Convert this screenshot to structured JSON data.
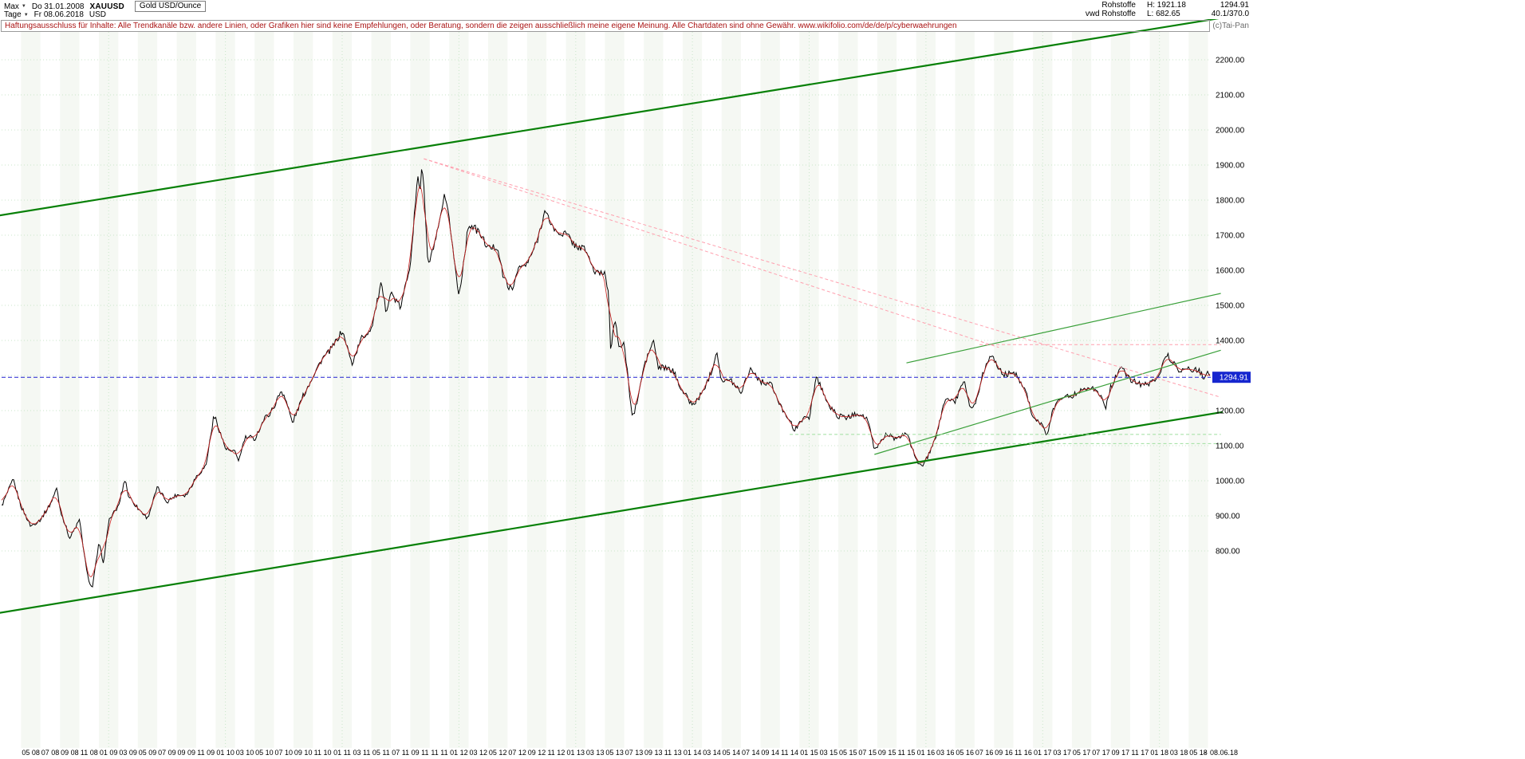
{
  "header": {
    "range_selector": "Max",
    "period_selector": "Tage",
    "start_date": "Do 31.01.2008",
    "end_date": "Fr 08.06.2018",
    "symbol": "XAUUSD",
    "currency": "USD",
    "instrument_title": "Gold USD/Ounce",
    "info": {
      "category": "Rohstoffe",
      "source": "vwd Rohstoffe",
      "high": "H: 1921.18",
      "low": "L: 682.65",
      "last": "1294.91",
      "indicator": "40.1/370.0",
      "copyright": "(c)Tai-Pan"
    }
  },
  "disclaimer": {
    "text": "Haftungsausschluss für Inhalte: Alle Trendkanäle bzw. andere Linien, oder Grafiken hier sind keine Empfehlungen, oder Beratung, sondern die zeigen ausschließlich meine eigene Meinung. Alle Chartdaten sind ohne Gewähr.",
    "url": "www.wikifolio.com/de/de/p/cyberwaehrungen"
  },
  "chart_data": {
    "type": "line",
    "title": "Gold USD/Ounce (XAUUSD), daily, 31.01.2008 - 08.06.2018",
    "last_price": 1294.91,
    "period_high": 1921.18,
    "period_low": 682.65,
    "grid": true,
    "colors": {
      "price": "#000000",
      "overlay_line": "#cc2020",
      "channel_green": "#078007",
      "thin_green": "#3aa03a",
      "pink_dashed": "#ff9fae",
      "light_green_dashed": "#9fdf9f",
      "last_price_line": "#2020d0",
      "grid": "#c9e6c9",
      "price_tag_bg": "#1626cf"
    },
    "y_axis": {
      "tick_step": 100,
      "labels": [
        "2200.00",
        "2100.00",
        "2000.00",
        "1900.00",
        "1800.00",
        "1700.00",
        "1600.00",
        "1500.00",
        "1400.00",
        "1200.00",
        "1100.00",
        "1000.00",
        "900.00",
        "800.00"
      ]
    },
    "x_tick_labels": [
      "05 08",
      "07 08",
      "09 08",
      "11 08",
      "01 09",
      "03 09",
      "05 09",
      "07 09",
      "09 09",
      "11 09",
      "01 10",
      "03 10",
      "05 10",
      "07 10",
      "09 10",
      "11 10",
      "01 11",
      "03 11",
      "05 11",
      "07 11",
      "09 11",
      "11 11",
      "01 12",
      "03 12",
      "05 12",
      "07 12",
      "09 12",
      "11 12",
      "01 13",
      "03 13",
      "05 13",
      "07 13",
      "09 13",
      "11 13",
      "01 14",
      "03 14",
      "05 14",
      "07 14",
      "09 14",
      "11 14",
      "01 15",
      "03 15",
      "05 15",
      "07 15",
      "09 15",
      "11 15",
      "01 16",
      "03 16",
      "05 16",
      "07 16",
      "09 16",
      "11 16",
      "01 17",
      "03 17",
      "05 17",
      "07 17",
      "09 17",
      "11 17",
      "01 18",
      "03 18",
      "05 18"
    ],
    "x_axis_separator": "-",
    "x_axis_end_label": "08.06.18",
    "series": {
      "name": "XAUUSD close",
      "points_format": "[t, price] where t = months since Jan 2008 (1 = end of Jan 2008), price in USD/oz",
      "points": [
        [
          1,
          923
        ],
        [
          2.2,
          1005
        ],
        [
          3,
          933
        ],
        [
          4,
          871
        ],
        [
          5,
          885
        ],
        [
          6,
          930
        ],
        [
          6.7,
          978
        ],
        [
          7,
          918
        ],
        [
          8,
          833
        ],
        [
          9,
          884
        ],
        [
          9.8,
          730
        ],
        [
          10.3,
          690
        ],
        [
          11,
          820
        ],
        [
          11.5,
          762
        ],
        [
          12,
          882
        ],
        [
          13,
          919
        ],
        [
          13.7,
          1000
        ],
        [
          14,
          952
        ],
        [
          15,
          916
        ],
        [
          16,
          888
        ],
        [
          17,
          975
        ],
        [
          18,
          934
        ],
        [
          19,
          953
        ],
        [
          20,
          955
        ],
        [
          21,
          1008
        ],
        [
          22,
          1040
        ],
        [
          22.8,
          1180
        ],
        [
          23,
          1175
        ],
        [
          24,
          1096
        ],
        [
          25,
          1083
        ],
        [
          25.4,
          1058
        ],
        [
          26,
          1118
        ],
        [
          27,
          1113
        ],
        [
          28,
          1180
        ],
        [
          29,
          1215
        ],
        [
          29.7,
          1255
        ],
        [
          30,
          1244
        ],
        [
          30.9,
          1160
        ],
        [
          31,
          1169
        ],
        [
          32,
          1246
        ],
        [
          33,
          1307
        ],
        [
          34,
          1359
        ],
        [
          35,
          1385
        ],
        [
          36,
          1421
        ],
        [
          37,
          1327
        ],
        [
          38,
          1411
        ],
        [
          39,
          1439
        ],
        [
          40,
          1556
        ],
        [
          40.5,
          1480
        ],
        [
          41,
          1536
        ],
        [
          42,
          1500
        ],
        [
          43,
          1628
        ],
        [
          43.8,
          1880
        ],
        [
          44,
          1826
        ],
        [
          44.2,
          1915
        ],
        [
          44.5,
          1790
        ],
        [
          44.8,
          1620
        ],
        [
          45,
          1622
        ],
        [
          46,
          1722
        ],
        [
          46.5,
          1800
        ],
        [
          47,
          1746
        ],
        [
          47.8,
          1570
        ],
        [
          48,
          1531
        ],
        [
          49,
          1737
        ],
        [
          50,
          1711
        ],
        [
          51,
          1662
        ],
        [
          52,
          1664
        ],
        [
          52.5,
          1585
        ],
        [
          53,
          1558
        ],
        [
          53.5,
          1540
        ],
        [
          54,
          1604
        ],
        [
          55,
          1622
        ],
        [
          56,
          1692
        ],
        [
          56.8,
          1780
        ],
        [
          57,
          1771
        ],
        [
          58,
          1720
        ],
        [
          59,
          1714
        ],
        [
          60,
          1675
        ],
        [
          61,
          1661
        ],
        [
          62,
          1588
        ],
        [
          63,
          1598
        ],
        [
          63.4,
          1540
        ],
        [
          63.6,
          1380
        ],
        [
          64,
          1469
        ],
        [
          64.5,
          1390
        ],
        [
          65,
          1394
        ],
        [
          65.8,
          1190
        ],
        [
          66,
          1192
        ],
        [
          66.5,
          1250
        ],
        [
          67,
          1323
        ],
        [
          68,
          1395
        ],
        [
          68.5,
          1320
        ],
        [
          69,
          1327
        ],
        [
          70,
          1323
        ],
        [
          71,
          1253
        ],
        [
          72,
          1205
        ],
        [
          73,
          1251
        ],
        [
          74,
          1326
        ],
        [
          74.5,
          1380
        ],
        [
          75,
          1291
        ],
        [
          76,
          1288
        ],
        [
          77,
          1250
        ],
        [
          78,
          1315
        ],
        [
          79,
          1285
        ],
        [
          80,
          1287
        ],
        [
          81,
          1216
        ],
        [
          82,
          1173
        ],
        [
          82.5,
          1140
        ],
        [
          83,
          1175
        ],
        [
          84,
          1184
        ],
        [
          84.7,
          1295
        ],
        [
          85,
          1283
        ],
        [
          86,
          1213
        ],
        [
          87,
          1184
        ],
        [
          88,
          1180
        ],
        [
          89,
          1190
        ],
        [
          90,
          1171
        ],
        [
          90.7,
          1085
        ],
        [
          91,
          1095
        ],
        [
          92,
          1134
        ],
        [
          93,
          1115
        ],
        [
          94,
          1142
        ],
        [
          95,
          1061
        ],
        [
          95.8,
          1048
        ],
        [
          96,
          1061
        ],
        [
          97,
          1118
        ],
        [
          98,
          1238
        ],
        [
          99,
          1232
        ],
        [
          99.8,
          1290
        ],
        [
          100,
          1292
        ],
        [
          100.5,
          1212
        ],
        [
          101,
          1215
        ],
        [
          102,
          1322
        ],
        [
          102.7,
          1370
        ],
        [
          103,
          1351
        ],
        [
          104,
          1309
        ],
        [
          105,
          1316
        ],
        [
          106,
          1272
        ],
        [
          106.3,
          1250
        ],
        [
          107,
          1173
        ],
        [
          108,
          1152
        ],
        [
          108.5,
          1125
        ],
        [
          109,
          1210
        ],
        [
          110,
          1248
        ],
        [
          111,
          1249
        ],
        [
          112,
          1268
        ],
        [
          113,
          1269
        ],
        [
          114,
          1242
        ],
        [
          114.5,
          1212
        ],
        [
          115,
          1269
        ],
        [
          116,
          1321
        ],
        [
          117,
          1280
        ],
        [
          118,
          1271
        ],
        [
          119,
          1275
        ],
        [
          120,
          1303
        ],
        [
          120.8,
          1360
        ],
        [
          121,
          1345
        ],
        [
          122,
          1318
        ],
        [
          123,
          1325
        ],
        [
          124,
          1315
        ],
        [
          124.6,
          1289
        ],
        [
          125,
          1300
        ],
        [
          125.27,
          1294.91
        ]
      ]
    },
    "trendlines": [
      {
        "name": "channel-lower",
        "t1": 0.5,
        "p1": 622,
        "t2": 126.5,
        "p2": 1196,
        "color": "#078007",
        "width": 2.2,
        "dash": null
      },
      {
        "name": "channel-upper",
        "t1": 0.5,
        "p1": 1755,
        "t2": 126.5,
        "p2": 2320,
        "color": "#078007",
        "width": 2.2,
        "dash": null
      },
      {
        "name": "support-2016-rising",
        "t1": 90.7,
        "p1": 1075,
        "t2": 126.3,
        "p2": 1372,
        "color": "#3aa03a",
        "width": 1.2,
        "dash": null
      },
      {
        "name": "resistance-2016-rising",
        "t1": 94,
        "p1": 1336,
        "t2": 126.3,
        "p2": 1534,
        "color": "#3aa03a",
        "width": 1.2,
        "dash": null
      },
      {
        "name": "downtrend-from-2011-peak-long",
        "t1": 44.4,
        "p1": 1918,
        "t2": 126.3,
        "p2": 1238,
        "color": "#ff9fae",
        "width": 1,
        "dash": "4,3"
      },
      {
        "name": "downtrend-from-2011-peak-short",
        "t1": 44.4,
        "p1": 1918,
        "t2": 103.5,
        "p2": 1380,
        "color": "#ff9fae",
        "width": 1,
        "dash": "4,3"
      },
      {
        "name": "resistance-horizontal-1388",
        "t1": 101.5,
        "p1": 1388,
        "t2": 126.3,
        "p2": 1388,
        "color": "#ff9fae",
        "width": 1,
        "dash": "4,3"
      },
      {
        "name": "support-horizontal-1132",
        "t1": 82,
        "p1": 1132,
        "t2": 126.3,
        "p2": 1132,
        "color": "#9fdf9f",
        "width": 1,
        "dash": "4,3"
      },
      {
        "name": "support-horizontal-1106",
        "t1": 94,
        "p1": 1106,
        "t2": 126.3,
        "p2": 1106,
        "color": "#9fdf9f",
        "width": 1,
        "dash": "4,3"
      }
    ]
  }
}
